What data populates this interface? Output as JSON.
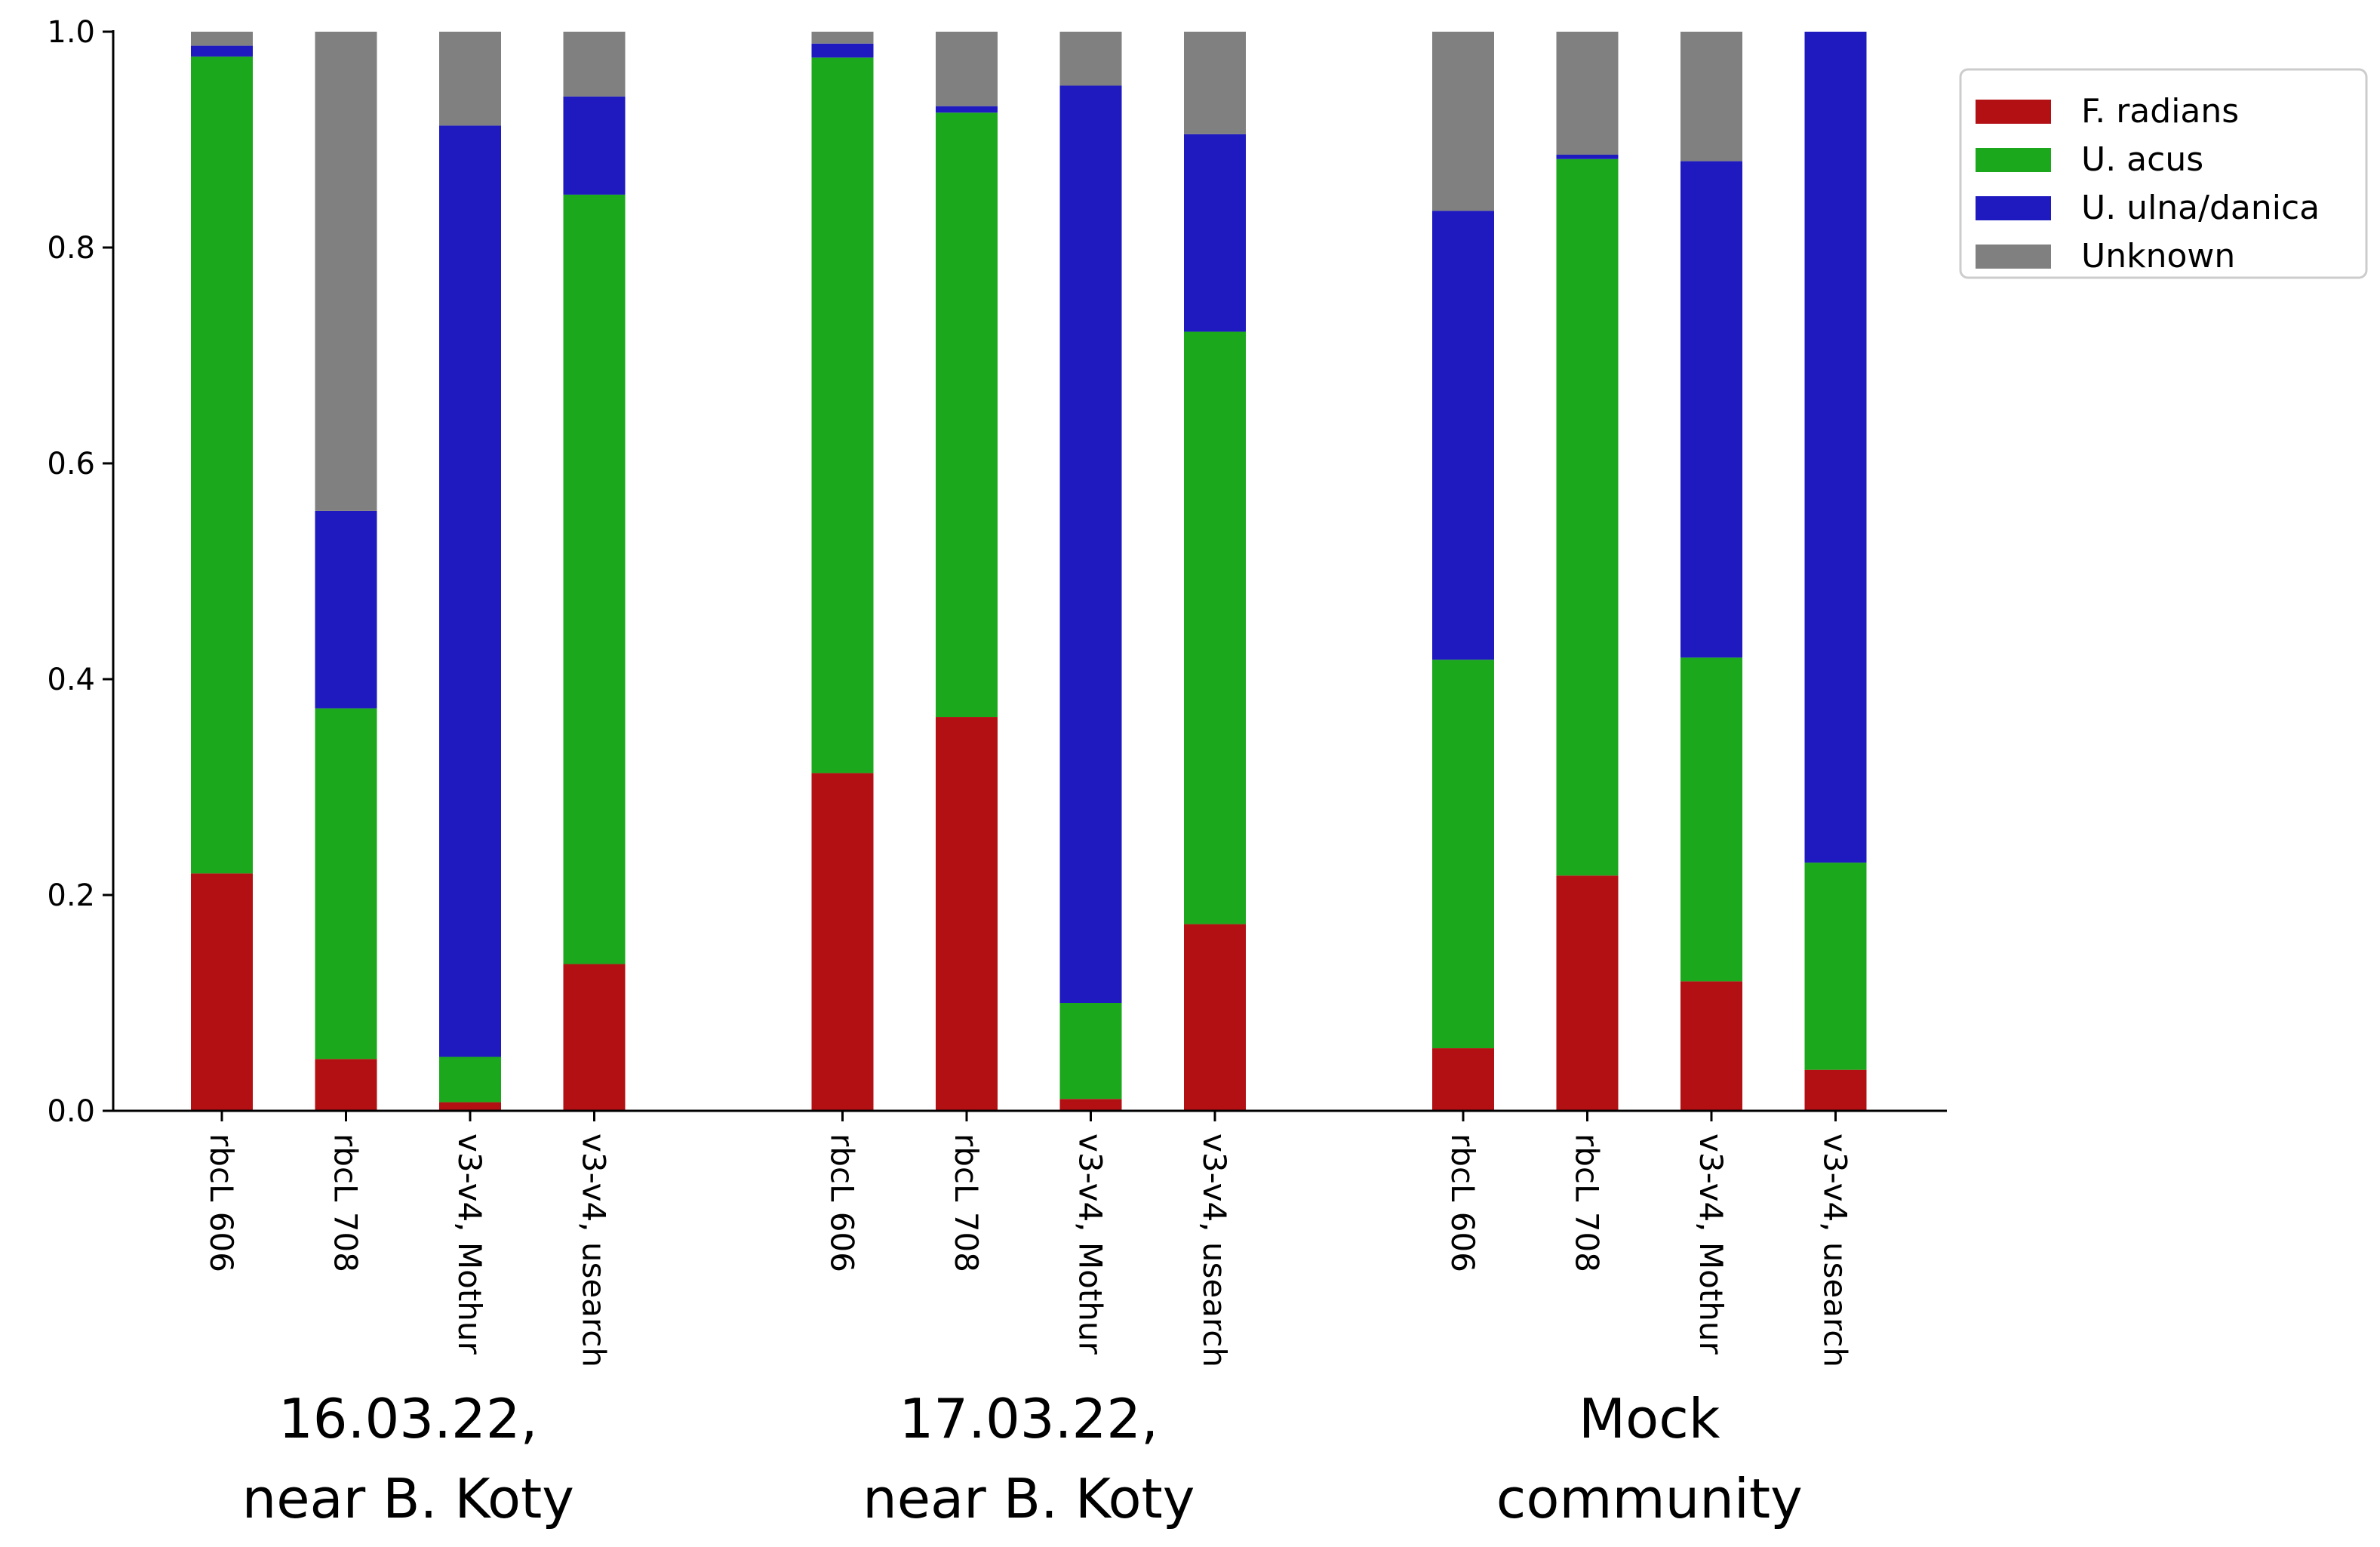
{
  "chart_data": {
    "type": "bar",
    "stacked": true,
    "title": "",
    "xlabel": "",
    "ylabel": "",
    "ylim": [
      0,
      1.0
    ],
    "yticks": [
      "0.0",
      "0.2",
      "0.4",
      "0.6",
      "0.8",
      "1.0"
    ],
    "legend_position": "top-right",
    "groups": [
      {
        "name": "16.03.22, near B. Koty",
        "lines": [
          "16.03.22,",
          "near B. Koty"
        ]
      },
      {
        "name": "17.03.22, near B. Koty",
        "lines": [
          "17.03.22,",
          "near B. Koty"
        ]
      },
      {
        "name": "Mock community",
        "lines": [
          "Mock",
          "community"
        ]
      }
    ],
    "categories": [
      "rbcL 606",
      "rbcL 708",
      "v3-v4, Mothur",
      "v3-v4, usearch",
      "rbcL 606",
      "rbcL 708",
      "v3-v4, Mothur",
      "v3-v4, usearch",
      "rbcL 606",
      "rbcL 708",
      "v3-v4, Mothur",
      "v3-v4, usearch"
    ],
    "category_group": [
      0,
      0,
      0,
      0,
      1,
      1,
      1,
      1,
      2,
      2,
      2,
      2
    ],
    "series": [
      {
        "name": "F. radians",
        "color": "#b31014",
        "values": [
          0.22,
          0.048,
          0.008,
          0.136,
          0.313,
          0.365,
          0.011,
          0.173,
          0.058,
          0.218,
          0.12,
          0.038
        ]
      },
      {
        "name": "U. acus",
        "color": "#1ca81c",
        "values": [
          0.757,
          0.325,
          0.042,
          0.713,
          0.663,
          0.56,
          0.089,
          0.549,
          0.36,
          0.664,
          0.3,
          0.192
        ]
      },
      {
        "name": "U. ulna/danica",
        "color": "#1e1abf",
        "values": [
          0.01,
          0.183,
          0.863,
          0.091,
          0.013,
          0.006,
          0.85,
          0.183,
          0.416,
          0.004,
          0.46,
          0.77
        ]
      },
      {
        "name": "Unknown",
        "color": "#808080",
        "values": [
          0.013,
          0.444,
          0.087,
          0.06,
          0.011,
          0.069,
          0.05,
          0.095,
          0.166,
          0.114,
          0.12,
          0.0
        ]
      }
    ]
  }
}
